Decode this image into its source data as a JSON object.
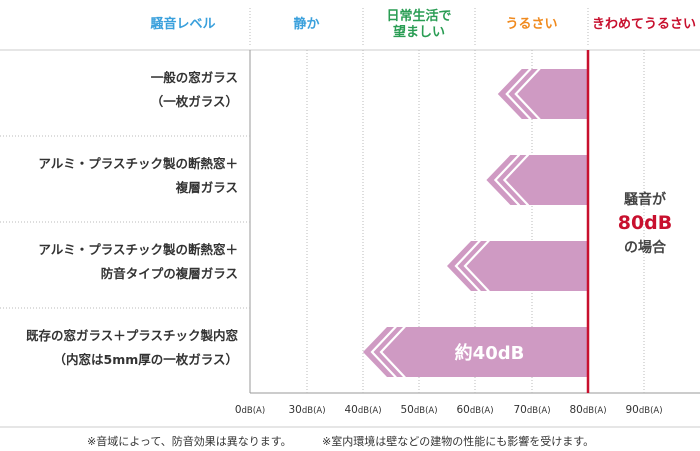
{
  "chart_data": {
    "type": "bar",
    "orientation": "horizontal",
    "level_header": "騒音レベル",
    "level_bands": [
      {
        "label_lines": [
          "静か"
        ],
        "color": "#3aa0dc",
        "from": 0,
        "to": 40
      },
      {
        "label_lines": [
          "日常生活で",
          "望ましい"
        ],
        "color": "#2a9d54",
        "from": 40,
        "to": 60
      },
      {
        "label_lines": [
          "うるさい"
        ],
        "color": "#f08a1e",
        "from": 60,
        "to": 80
      },
      {
        "label_lines": [
          "きわめてうるさい"
        ],
        "color": "#c8102e",
        "from": 80,
        "to": 100
      }
    ],
    "categories": [
      {
        "lines": [
          "一般の窓ガラス",
          "（一枚ガラス）"
        ]
      },
      {
        "lines": [
          "アルミ・プラスチック製の断熱窓＋",
          "複層ガラス"
        ]
      },
      {
        "lines": [
          "アルミ・プラスチック製の断熱窓＋",
          "防音タイプの複層ガラス"
        ]
      },
      {
        "lines": [
          "既存の窓ガラス＋プラスチック製内窓",
          "（内窓は5mm厚の一枚ガラス）"
        ]
      }
    ],
    "start_value": 80,
    "values": [
      64,
      62,
      55,
      40
    ],
    "bar_label": "約40dB",
    "xticks": [
      0,
      30,
      40,
      50,
      60,
      70,
      80,
      90
    ],
    "tick_unit": "dB(A)",
    "reference_line": {
      "value": 80,
      "color": "#c8102e",
      "label_lines": [
        "騒音が",
        "80dB",
        "の場合"
      ]
    },
    "bar_color": "#cf9ac3",
    "footnotes": [
      "※音域によって、防音効果は異なります。",
      "※室内環境は壁などの建物の性能にも影響を受けます。"
    ]
  }
}
